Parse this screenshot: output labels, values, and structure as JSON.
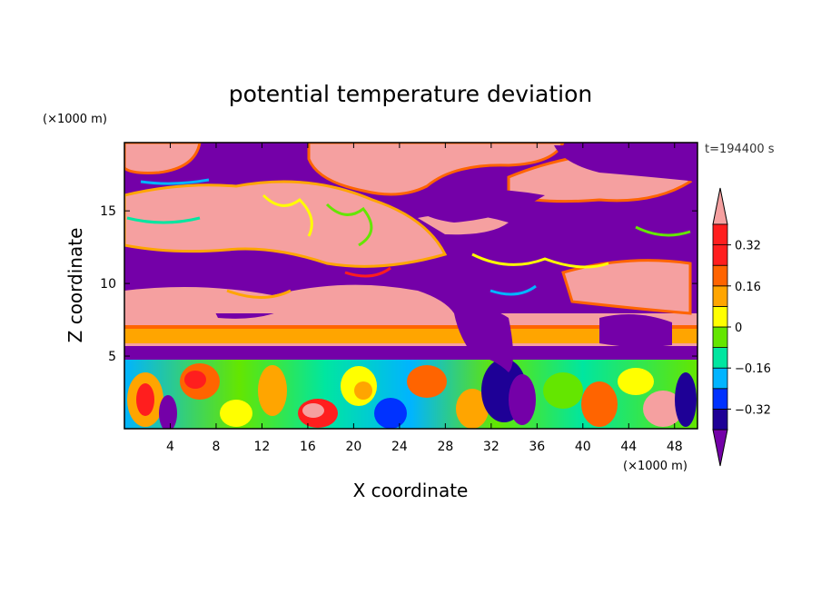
{
  "chart_data": {
    "type": "heatmap",
    "title": "potential temperature deviation",
    "xlabel": "X coordinate",
    "ylabel": "Z coordinate",
    "x_unit": "(×1000 m)",
    "y_unit": "(×1000 m)",
    "time_label": "t=194400 s",
    "xlim": [
      0,
      50
    ],
    "ylim": [
      0,
      19.7
    ],
    "x_ticks": [
      4,
      8,
      12,
      16,
      20,
      24,
      28,
      32,
      36,
      40,
      44,
      48
    ],
    "y_ticks": [
      5,
      10,
      15
    ],
    "colorbar": {
      "levels": [
        -0.4,
        -0.32,
        -0.24,
        -0.16,
        -0.08,
        0,
        0.08,
        0.16,
        0.24,
        0.32,
        0.4
      ],
      "tick_labels": [
        "0.32",
        "0.16",
        "0",
        "−0.16",
        "−0.32"
      ],
      "tick_values": [
        0.32,
        0.16,
        0,
        -0.16,
        -0.32
      ],
      "colors": [
        "#7400a8",
        "#1e0096",
        "#0032ff",
        "#00b4ff",
        "#00e6a0",
        "#64e600",
        "#ffff00",
        "#ffa500",
        "#ff6400",
        "#ff1e1e",
        "#f5a0a0"
      ],
      "extend": "both"
    },
    "layers": [
      {
        "z_range": [
          0,
          4.8
        ],
        "pattern": "mixed turbulent eddies, all levels"
      },
      {
        "z_range": [
          4.8,
          5.7
        ],
        "value": "below -0.4"
      },
      {
        "z_range": [
          5.7,
          8.4
        ],
        "value": "0.16 to 0.40, horizontal bands"
      },
      {
        "z_range": [
          8.4,
          19.7
        ],
        "pattern": "above 0.4 and below -0.4 patches with filamentary edges"
      }
    ]
  }
}
